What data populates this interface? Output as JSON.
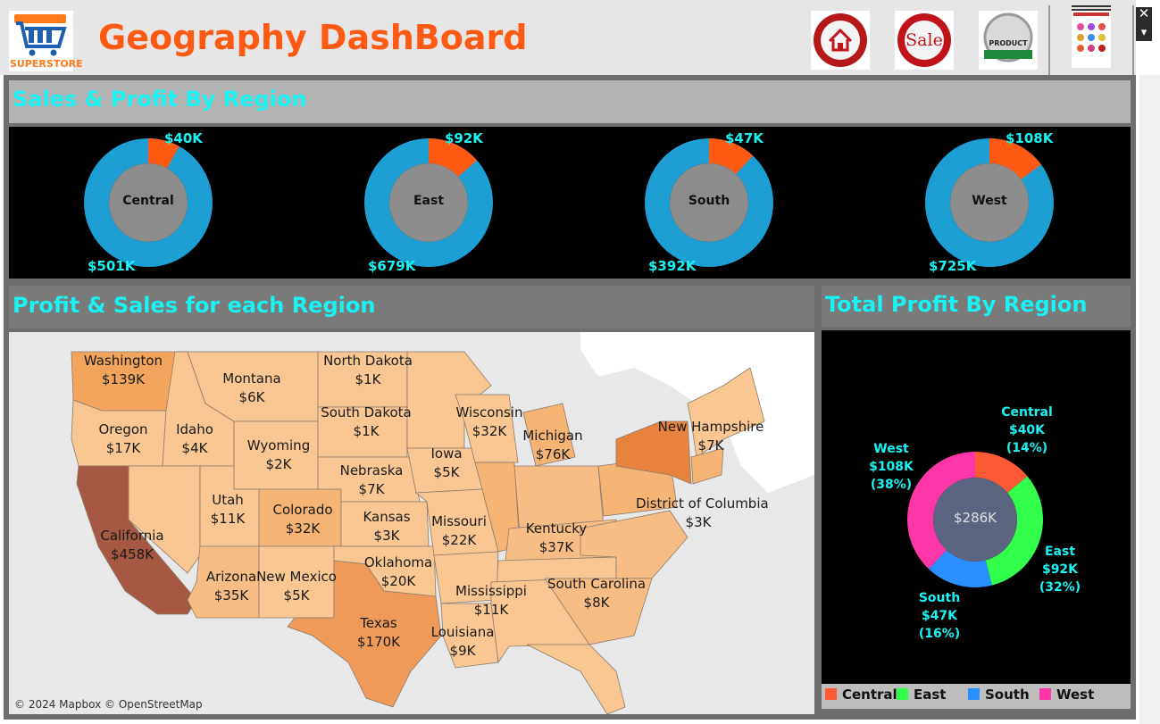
{
  "header": {
    "title": "Geography DashBoard",
    "logo_text": "SUPERSTORE",
    "nav": [
      {
        "name": "home",
        "icon": "home-icon"
      },
      {
        "name": "sale",
        "label": "Sale",
        "icon": "sale-badge-icon"
      },
      {
        "name": "product",
        "label": "PRODUCT",
        "icon": "product-badge-icon"
      },
      {
        "name": "geography",
        "icon": "geography-thumbnail-icon"
      }
    ]
  },
  "window_controls": {
    "close_label": "✕",
    "dropdown_label": "▾"
  },
  "region_panel": {
    "title": "Sales & Profit By Region",
    "donuts": [
      {
        "region": "Central",
        "profit": "$40K",
        "sales": "$501K"
      },
      {
        "region": "East",
        "profit": "$92K",
        "sales": "$679K"
      },
      {
        "region": "South",
        "profit": "$47K",
        "sales": "$392K"
      },
      {
        "region": "West",
        "profit": "$108K",
        "sales": "$725K"
      }
    ]
  },
  "map_panel": {
    "title": "Profit  &  Sales for each Region",
    "copyright": "© 2024 Mapbox © OpenStreetMap",
    "states": [
      {
        "name": "Washington",
        "value": "$139K"
      },
      {
        "name": "Montana",
        "value": "$6K"
      },
      {
        "name": "North Dakota",
        "value": "$1K"
      },
      {
        "name": "Oregon",
        "value": "$17K"
      },
      {
        "name": "Idaho",
        "value": "$4K"
      },
      {
        "name": "South Dakota",
        "value": "$1K"
      },
      {
        "name": "Wisconsin",
        "value": "$32K"
      },
      {
        "name": "Michigan",
        "value": "$76K"
      },
      {
        "name": "New Hampshire",
        "value": "$7K"
      },
      {
        "name": "Wyoming",
        "value": "$2K"
      },
      {
        "name": "Iowa",
        "value": "$5K"
      },
      {
        "name": "Nebraska",
        "value": "$7K"
      },
      {
        "name": "Utah",
        "value": "$11K"
      },
      {
        "name": "Colorado",
        "value": "$32K"
      },
      {
        "name": "California",
        "value": "$458K"
      },
      {
        "name": "Kansas",
        "value": "$3K"
      },
      {
        "name": "Missouri",
        "value": "$22K"
      },
      {
        "name": "District of Columbia",
        "value": "$3K"
      },
      {
        "name": "Kentucky",
        "value": "$37K"
      },
      {
        "name": "Oklahoma",
        "value": "$20K"
      },
      {
        "name": "Arizona",
        "value": "$35K"
      },
      {
        "name": "New Mexico",
        "value": "$5K"
      },
      {
        "name": "South Carolina",
        "value": "$8K"
      },
      {
        "name": "Mississippi",
        "value": "$11K"
      },
      {
        "name": "Texas",
        "value": "$170K"
      },
      {
        "name": "Louisiana",
        "value": "$9K"
      }
    ]
  },
  "profit_panel": {
    "title": "Total Profit By Region",
    "total": "$286K",
    "slices": [
      {
        "region": "Central",
        "value": "$40K",
        "pct": "(14%)",
        "share": 14,
        "color": "#ff5a36"
      },
      {
        "region": "East",
        "value": "$92K",
        "pct": "(32%)",
        "share": 32,
        "color": "#33ff4d"
      },
      {
        "region": "South",
        "value": "$47K",
        "pct": "(16%)",
        "share": 16,
        "color": "#2a8fff"
      },
      {
        "region": "West",
        "value": "$108K",
        "pct": "(38%)",
        "share": 38,
        "color": "#ff36a8"
      }
    ],
    "legend": [
      "Central",
      "East",
      "South",
      "West"
    ]
  },
  "colors": {
    "accent_title": "#19f3f3",
    "header_title": "#ff5a14",
    "donut_sales": "#1e9fd4",
    "donut_profit": "#ff5a14",
    "donut_center": "#8c8c8c",
    "pie_center": "#5c6580"
  }
}
